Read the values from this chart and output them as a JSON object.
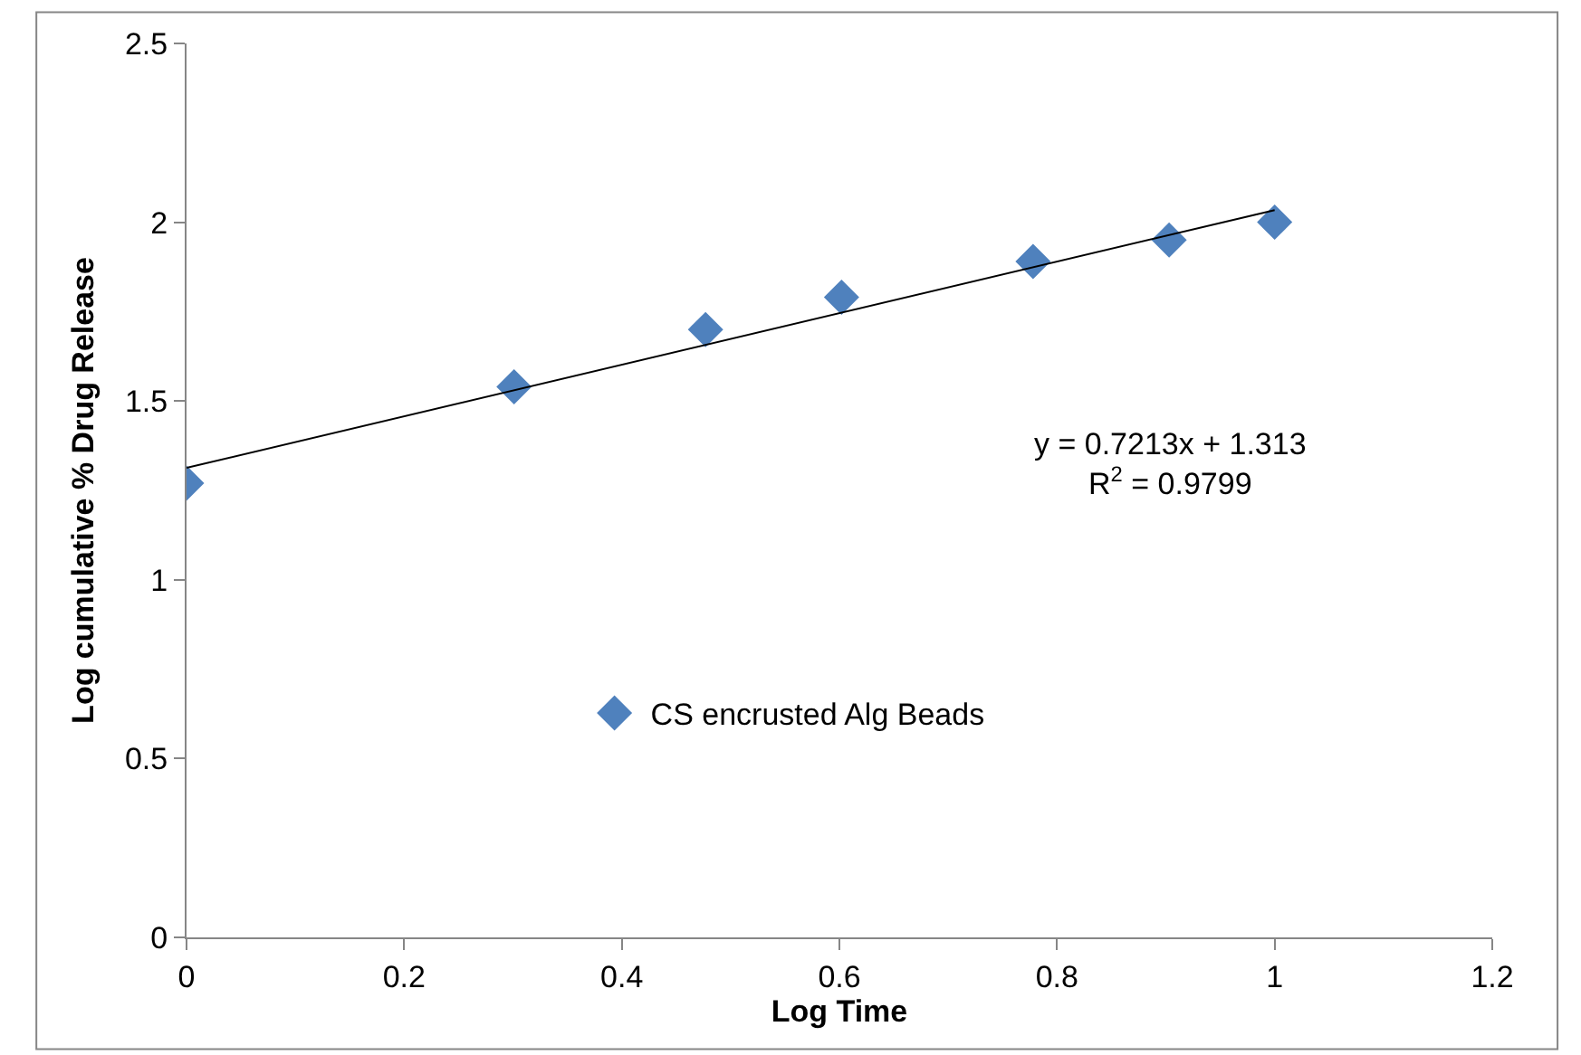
{
  "chart_data": {
    "type": "scatter",
    "xlabel": "Log Time",
    "ylabel": "Log cumulative % Drug Release",
    "x": [
      0,
      0.301,
      0.477,
      0.602,
      0.778,
      0.903,
      1.0
    ],
    "series": [
      {
        "name": "CS encrusted Alg Beads",
        "color": "#4f81bd",
        "values": [
          1.27,
          1.54,
          1.7,
          1.79,
          1.89,
          1.95,
          2.0
        ],
        "marker": "diamond"
      },
      {
        "type": "line",
        "color": "#000000",
        "x": [
          0,
          1.0
        ],
        "values": [
          1.313,
          2.034
        ],
        "marker": "none",
        "line_style": "solid"
      }
    ],
    "annotations": [
      "y = 0.7213x + 1.313\nR$^{2}$ = 0.9799"
    ],
    "xlim": [
      0,
      1.2
    ],
    "xticks": [
      0,
      0.2,
      0.4,
      0.6,
      0.8,
      1,
      1.2
    ],
    "ylim": [
      0,
      2.5
    ],
    "yticks": [
      0,
      0.5,
      1,
      1.5,
      2,
      2.5
    ],
    "legend": "left"
  }
}
